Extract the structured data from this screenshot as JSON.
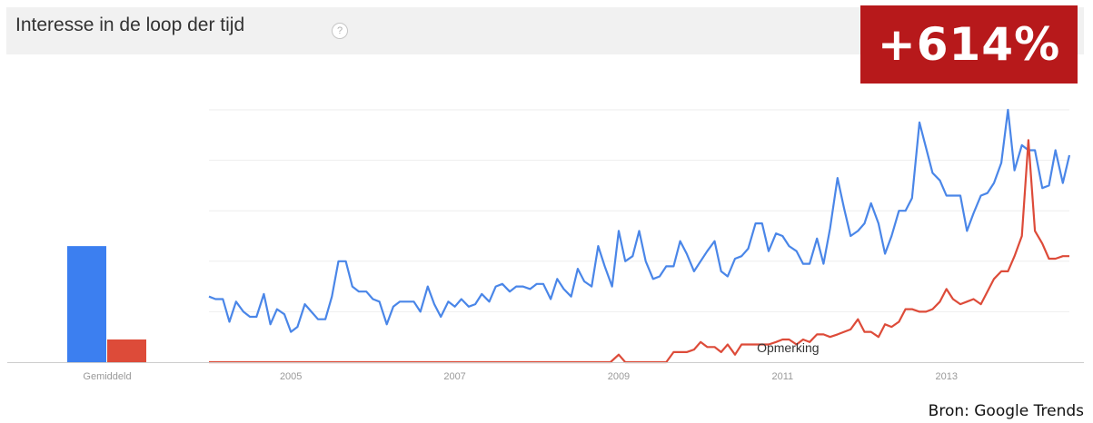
{
  "header": {
    "title": "Interesse in de loop der tijd",
    "help_icon": "question-mark-icon"
  },
  "badge": {
    "label": "+614%",
    "color": "#b7191b"
  },
  "source": "Bron: Google Trends",
  "chart_data": {
    "type": "line",
    "x_ticks": [
      "2005",
      "2007",
      "2009",
      "2011",
      "2013"
    ],
    "x_tick_values": [
      2005.0,
      2007.0,
      2009.0,
      2011.0,
      2013.0
    ],
    "xlim": [
      2004.0,
      2014.5
    ],
    "ylim": [
      0,
      100
    ],
    "grid": true,
    "annotation": "Opmerking",
    "annotation_x": 2011.0,
    "average": {
      "label": "Gemiddeld",
      "values": [
        46,
        9
      ],
      "colors": [
        "#3c7ff0",
        "#dd4b39"
      ]
    },
    "series": [
      {
        "color": "#4a86e8",
        "x": [
          2004.0,
          2004.08,
          2004.17,
          2004.25,
          2004.33,
          2004.42,
          2004.5,
          2004.58,
          2004.67,
          2004.75,
          2004.83,
          2004.92,
          2005.0,
          2005.08,
          2005.17,
          2005.25,
          2005.33,
          2005.42,
          2005.5,
          2005.58,
          2005.67,
          2005.75,
          2005.83,
          2005.92,
          2006.0,
          2006.08,
          2006.17,
          2006.25,
          2006.33,
          2006.42,
          2006.5,
          2006.58,
          2006.67,
          2006.75,
          2006.83,
          2006.92,
          2007.0,
          2007.08,
          2007.17,
          2007.25,
          2007.33,
          2007.42,
          2007.5,
          2007.58,
          2007.67,
          2007.75,
          2007.83,
          2007.92,
          2008.0,
          2008.08,
          2008.17,
          2008.25,
          2008.33,
          2008.42,
          2008.5,
          2008.58,
          2008.67,
          2008.75,
          2008.83,
          2008.92,
          2009.0,
          2009.08,
          2009.17,
          2009.25,
          2009.33,
          2009.42,
          2009.5,
          2009.58,
          2009.67,
          2009.75,
          2009.83,
          2009.92,
          2010.0,
          2010.08,
          2010.17,
          2010.25,
          2010.33,
          2010.42,
          2010.5,
          2010.58,
          2010.67,
          2010.75,
          2010.83,
          2010.92,
          2011.0,
          2011.08,
          2011.17,
          2011.25,
          2011.33,
          2011.42,
          2011.5,
          2011.58,
          2011.67,
          2011.75,
          2011.83,
          2011.92,
          2012.0,
          2012.08,
          2012.17,
          2012.25,
          2012.33,
          2012.42,
          2012.5,
          2012.58,
          2012.67,
          2012.75,
          2012.83,
          2012.92,
          2013.0,
          2013.08,
          2013.17,
          2013.25,
          2013.33,
          2013.42,
          2013.5,
          2013.58,
          2013.67,
          2013.75,
          2013.83,
          2013.92,
          2014.0,
          2014.08,
          2014.17,
          2014.25,
          2014.33,
          2014.42,
          2014.5
        ],
        "y": [
          26,
          25,
          25,
          16,
          24,
          20,
          18,
          18,
          27,
          15,
          21,
          19,
          12,
          14,
          23,
          20,
          17,
          17,
          26,
          40,
          40,
          30,
          28,
          28,
          25,
          24,
          15,
          22,
          24,
          24,
          24,
          20,
          30,
          23,
          18,
          24,
          22,
          25,
          22,
          23,
          27,
          24,
          30,
          31,
          28,
          30,
          30,
          29,
          31,
          31,
          25,
          33,
          29,
          26,
          37,
          32,
          30,
          46,
          38,
          30,
          52,
          40,
          42,
          52,
          40,
          33,
          34,
          38,
          38,
          48,
          43,
          36,
          40,
          44,
          48,
          36,
          34,
          41,
          42,
          45,
          55,
          55,
          44,
          51,
          50,
          46,
          44,
          39,
          39,
          49,
          39,
          53,
          73,
          61,
          50,
          52,
          55,
          63,
          55,
          43,
          50,
          60,
          60,
          65,
          95,
          85,
          75,
          72,
          66,
          66,
          66,
          52,
          59,
          66,
          67,
          71,
          79,
          100,
          76,
          86,
          84,
          84,
          69,
          70,
          84,
          71,
          82
        ]
      },
      {
        "color": "#dd4b39",
        "x": [
          2004.0,
          2008.9,
          2009.0,
          2009.08,
          2009.17,
          2009.25,
          2009.33,
          2009.42,
          2009.5,
          2009.58,
          2009.67,
          2009.75,
          2009.83,
          2009.92,
          2010.0,
          2010.08,
          2010.17,
          2010.25,
          2010.33,
          2010.42,
          2010.5,
          2010.58,
          2010.67,
          2010.75,
          2010.83,
          2010.92,
          2011.0,
          2011.08,
          2011.17,
          2011.25,
          2011.33,
          2011.42,
          2011.5,
          2011.58,
          2011.67,
          2011.75,
          2011.83,
          2011.92,
          2012.0,
          2012.08,
          2012.17,
          2012.25,
          2012.33,
          2012.42,
          2012.5,
          2012.58,
          2012.67,
          2012.75,
          2012.83,
          2012.92,
          2013.0,
          2013.08,
          2013.17,
          2013.25,
          2013.33,
          2013.42,
          2013.5,
          2013.58,
          2013.67,
          2013.75,
          2013.83,
          2013.92,
          2014.0,
          2014.08,
          2014.17,
          2014.25,
          2014.33,
          2014.42,
          2014.5
        ],
        "y": [
          0,
          0,
          3,
          0,
          0,
          0,
          0,
          0,
          0,
          0,
          4,
          4,
          4,
          5,
          8,
          6,
          6,
          4,
          7,
          3,
          7,
          7,
          7,
          7,
          7,
          8,
          9,
          9,
          7,
          9,
          8,
          11,
          11,
          10,
          11,
          12,
          13,
          17,
          12,
          12,
          10,
          15,
          14,
          16,
          21,
          21,
          20,
          20,
          21,
          24,
          29,
          25,
          23,
          24,
          25,
          23,
          28,
          33,
          36,
          36,
          42,
          50,
          88,
          52,
          47,
          41,
          41,
          42,
          42
        ]
      }
    ]
  }
}
